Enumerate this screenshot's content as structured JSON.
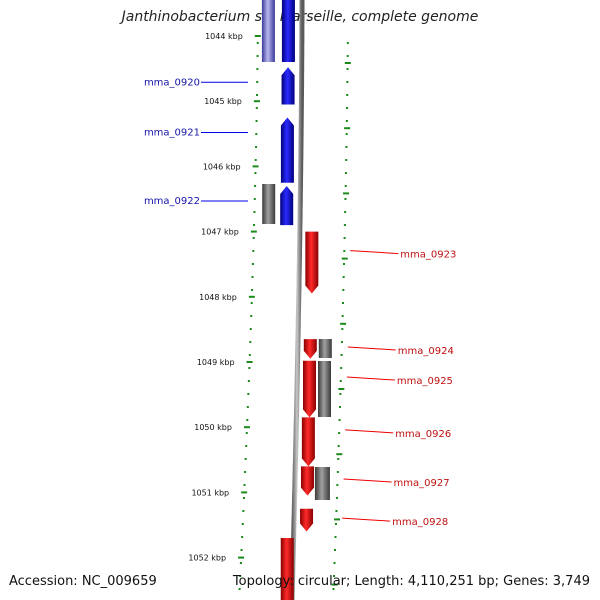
{
  "title": "Janthinobacterium sp. Marseille, complete genome",
  "footer": {
    "accession": "Accession: NC_009659",
    "topology": "Topology: circular; Length: 4,110,251 bp; Genes: 3,749"
  },
  "colors": {
    "forward_gene": "#0000ee",
    "reverse_gene": "#ee0000",
    "other_feature": "#707070",
    "backbone": "#8a8a8a",
    "tick": "#1a8a1a"
  },
  "tick_labels": [
    {
      "kbp": 1044,
      "label": "1044 kbp"
    },
    {
      "kbp": 1045,
      "label": "1045 kbp"
    },
    {
      "kbp": 1046,
      "label": "1046 kbp"
    },
    {
      "kbp": 1047,
      "label": "1047 kbp"
    },
    {
      "kbp": 1048,
      "label": "1048 kbp"
    },
    {
      "kbp": 1049,
      "label": "1049 kbp"
    },
    {
      "kbp": 1050,
      "label": "1050 kbp"
    },
    {
      "kbp": 1051,
      "label": "1051 kbp"
    },
    {
      "kbp": 1052,
      "label": "1052 kbp"
    }
  ],
  "genes": [
    {
      "id": "mma_0920",
      "label": "mma_0920",
      "strand": "+",
      "start_kbp": 1044.48,
      "end_kbp": 1045.05
    },
    {
      "id": "mma_0921",
      "label": "mma_0921",
      "strand": "+",
      "start_kbp": 1045.25,
      "end_kbp": 1046.25
    },
    {
      "id": "mma_0922",
      "label": "mma_0922",
      "strand": "+",
      "start_kbp": 1046.3,
      "end_kbp": 1046.9
    },
    {
      "id": "mma_0923",
      "label": "mma_0923",
      "strand": "-",
      "start_kbp": 1047.0,
      "end_kbp": 1047.95
    },
    {
      "id": "mma_0924",
      "label": "mma_0924",
      "strand": "-",
      "start_kbp": 1048.65,
      "end_kbp": 1048.95
    },
    {
      "id": "mma_0925",
      "label": "mma_0925",
      "strand": "-",
      "start_kbp": 1048.98,
      "end_kbp": 1049.85
    },
    {
      "id": "mma_0926",
      "label": "mma_0926",
      "strand": "-",
      "start_kbp": 1049.85,
      "end_kbp": 1050.6
    },
    {
      "id": "mma_0927",
      "label": "mma_0927",
      "strand": "-",
      "start_kbp": 1050.6,
      "end_kbp": 1051.05
    },
    {
      "id": "mma_0928",
      "label": "mma_0928",
      "strand": "-",
      "start_kbp": 1051.25,
      "end_kbp": 1051.6
    }
  ]
}
